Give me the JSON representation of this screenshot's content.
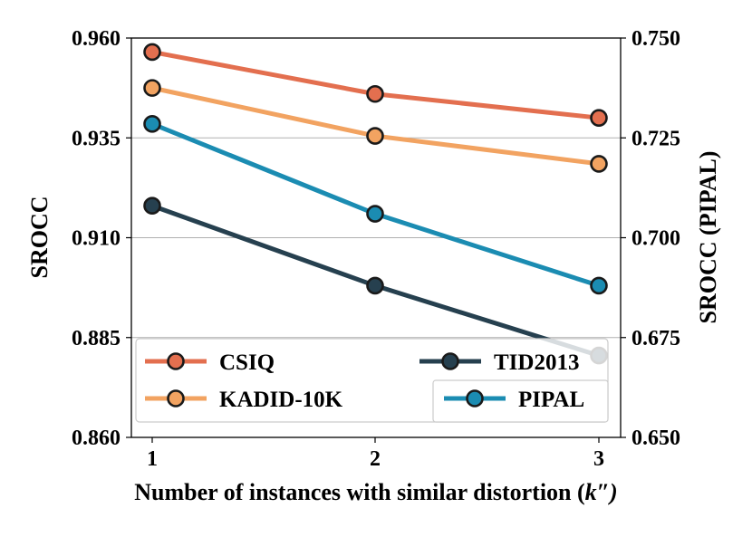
{
  "chart_data": {
    "type": "line",
    "categories": [
      1,
      2,
      3
    ],
    "xlabel": "Number of instances with similar distortion (",
    "xlabel_var": "k",
    "xlabel_suffix": "″)",
    "ylabel_left": "SROCC",
    "ylabel_right": "SROCC (PIPAL)",
    "ylim_left": [
      0.86,
      0.96
    ],
    "ylim_right": [
      0.65,
      0.75
    ],
    "yticks_left": [
      "0.860",
      "0.885",
      "0.910",
      "0.935",
      "0.960"
    ],
    "yticks_right": [
      "0.650",
      "0.675",
      "0.700",
      "0.725",
      "0.750"
    ],
    "xticks": [
      "1",
      "2",
      "3"
    ],
    "grid": "horizontal",
    "legend_position": "lower",
    "series": [
      {
        "name": "CSIQ",
        "axis": "left",
        "color": "#e36f4f",
        "values": [
          0.9565,
          0.946,
          0.94
        ]
      },
      {
        "name": "KADID-10K",
        "axis": "left",
        "color": "#f2a361",
        "values": [
          0.9475,
          0.9355,
          0.9285
        ]
      },
      {
        "name": "TID2013",
        "axis": "left",
        "color": "#26404f",
        "values": [
          0.918,
          0.898,
          0.8805
        ]
      },
      {
        "name": "PIPAL",
        "axis": "right",
        "color": "#1b8cb2",
        "values": [
          0.7285,
          0.706,
          0.688
        ]
      }
    ]
  }
}
